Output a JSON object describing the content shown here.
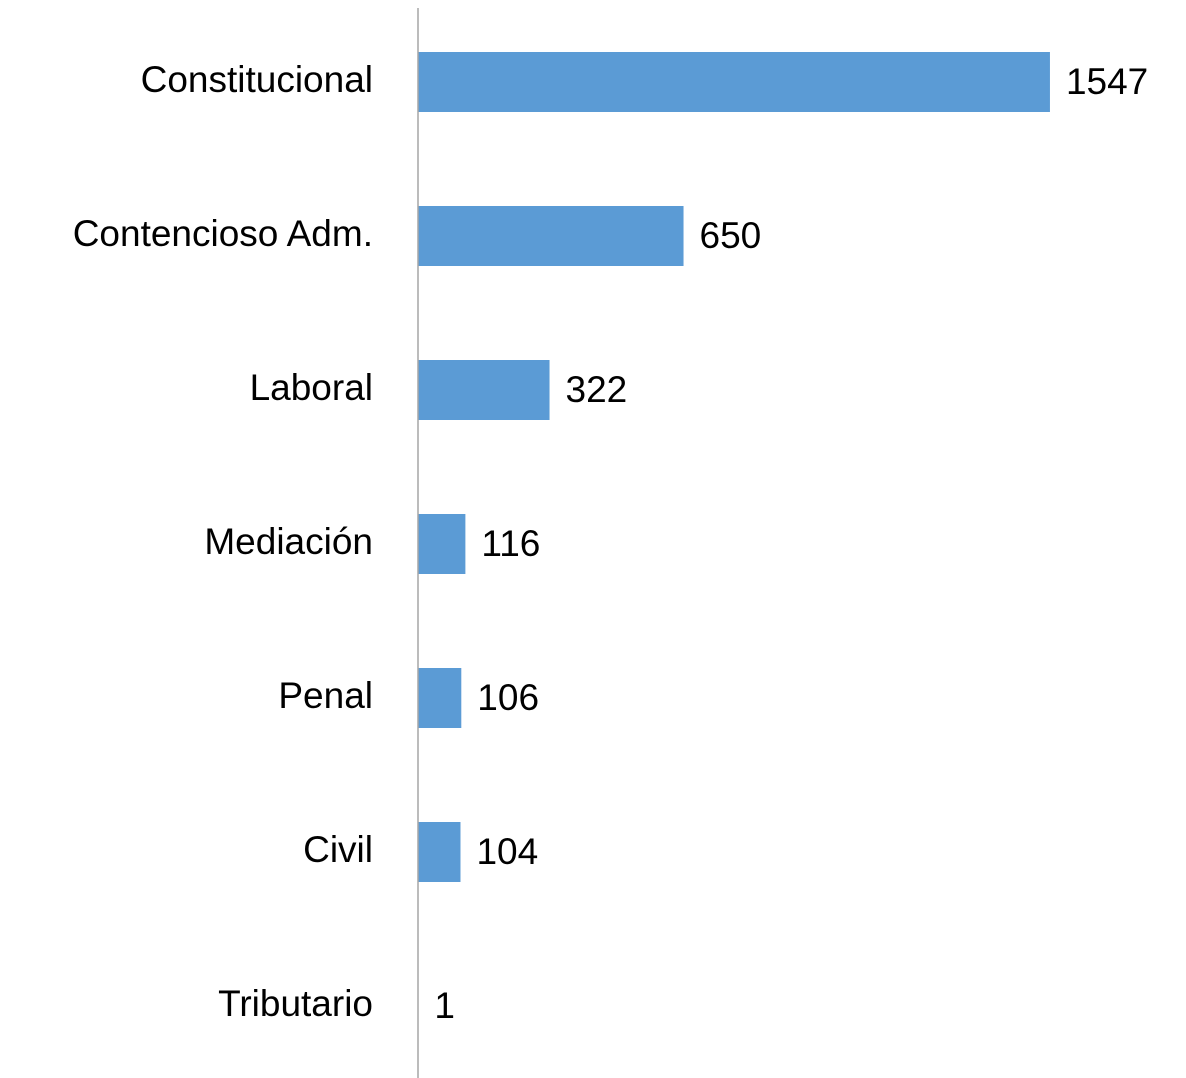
{
  "chart_data": {
    "type": "barh",
    "categories": [
      "Constitucional",
      "Contencioso Adm.",
      "Laboral",
      "Mediación",
      "Penal",
      "Civil",
      "Tributario"
    ],
    "values": [
      1547,
      650,
      322,
      116,
      106,
      104,
      1
    ],
    "color": "#5b9bd5",
    "xlim": [
      0,
      1600
    ]
  }
}
